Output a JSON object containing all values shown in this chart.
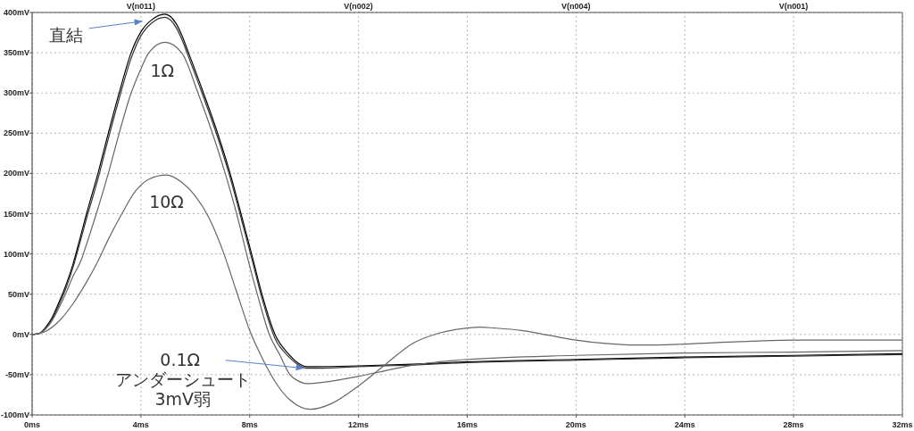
{
  "chart_data": {
    "type": "line",
    "xlim": [
      0,
      32
    ],
    "ylim": [
      -100,
      400
    ],
    "xticks": [
      {
        "value": 0,
        "label": "0ms"
      },
      {
        "value": 4,
        "label": "4ms"
      },
      {
        "value": 8,
        "label": "8ms"
      },
      {
        "value": 12,
        "label": "12ms"
      },
      {
        "value": 16,
        "label": "16ms"
      },
      {
        "value": 20,
        "label": "20ms"
      },
      {
        "value": 24,
        "label": "24ms"
      },
      {
        "value": 28,
        "label": "28ms"
      },
      {
        "value": 32,
        "label": "32ms"
      }
    ],
    "yticks": [
      {
        "value": -100,
        "label": "-100mV"
      },
      {
        "value": -50,
        "label": "-50mV"
      },
      {
        "value": 0,
        "label": "0mV"
      },
      {
        "value": 50,
        "label": "50mV"
      },
      {
        "value": 100,
        "label": "100mV"
      },
      {
        "value": 150,
        "label": "150mV"
      },
      {
        "value": 200,
        "label": "200mV"
      },
      {
        "value": 250,
        "label": "250mV"
      },
      {
        "value": 300,
        "label": "300mV"
      },
      {
        "value": 350,
        "label": "350mV"
      },
      {
        "value": 400,
        "label": "400mV"
      }
    ],
    "grid": true,
    "series": [
      {
        "name": "直結",
        "color": "#000000",
        "x": [
          0,
          0.25,
          0.5,
          0.75,
          1.0,
          1.25,
          1.5,
          1.75,
          2.0,
          2.42,
          2.8,
          3.2,
          3.64,
          4.0,
          4.4,
          4.88,
          5.3,
          5.5,
          5.75,
          6.3,
          6.82,
          7.28,
          7.68,
          8.07,
          8.45,
          8.93,
          9.45,
          9.8,
          10.1,
          10.5,
          12,
          14,
          16,
          20,
          24,
          28,
          32
        ],
        "values": [
          0,
          1,
          9,
          22,
          41,
          62,
          87,
          118,
          150,
          200,
          250,
          300,
          350,
          376,
          391,
          398,
          386,
          372,
          350,
          300,
          250,
          200,
          150,
          100,
          50,
          0,
          -25,
          -36,
          -40,
          -40,
          -39,
          -37,
          -34,
          -31,
          -28,
          -26,
          -24
        ]
      },
      {
        "color": "#333333",
        "x": [
          0,
          0.25,
          0.5,
          0.75,
          1.0,
          1.25,
          1.5,
          1.75,
          2.0,
          2.42,
          2.8,
          3.2,
          3.64,
          4.0,
          4.4,
          4.88,
          5.3,
          5.5,
          5.75,
          6.3,
          6.82,
          7.28,
          7.68,
          8.07,
          8.45,
          8.93,
          9.45,
          9.8,
          10.1,
          10.5,
          12,
          14,
          16,
          20,
          24,
          28,
          32
        ],
        "values": [
          0,
          1,
          8,
          20,
          38,
          58,
          83,
          113,
          144,
          193,
          243,
          293,
          343,
          371,
          387,
          394,
          381,
          367,
          345,
          295,
          245,
          195,
          145,
          95,
          45,
          -5,
          -28,
          -38,
          -42,
          -42,
          -40,
          -38,
          -35,
          -32,
          -29,
          -27,
          -25
        ]
      },
      {
        "name": "1Ω",
        "color": "#666666",
        "x": [
          0,
          0.25,
          0.5,
          0.75,
          1.0,
          1.25,
          1.5,
          1.8,
          2.0,
          2.36,
          2.8,
          3.2,
          3.64,
          4.0,
          4.29,
          4.88,
          5.5,
          6.1,
          6.63,
          7.1,
          7.52,
          7.96,
          8.28,
          8.72,
          9.1,
          9.48,
          9.8,
          10.08,
          11,
          12,
          13,
          14,
          15,
          16,
          20,
          24,
          28,
          32
        ],
        "values": [
          0,
          1,
          7,
          18,
          34,
          52,
          72,
          92,
          112,
          150,
          200,
          250,
          300,
          330,
          350,
          363,
          350,
          300,
          250,
          200,
          150,
          90,
          50,
          0,
          -25,
          -50,
          -58,
          -61,
          -58,
          -52,
          -45,
          -38,
          -34,
          -31,
          -26,
          -23,
          -22,
          -20
        ]
      },
      {
        "name": "10Ω",
        "color": "#666666",
        "x": [
          0,
          0.5,
          1.0,
          1.5,
          2.0,
          2.36,
          2.8,
          3.3,
          3.8,
          4.3,
          4.94,
          5.5,
          6.0,
          6.5,
          7.0,
          7.5,
          8.0,
          8.5,
          9.0,
          9.5,
          10.25,
          11,
          12,
          13,
          14,
          15,
          16,
          16.5,
          17,
          18,
          19,
          20,
          21,
          22,
          23,
          24,
          26,
          28,
          30,
          32
        ],
        "values": [
          0,
          4,
          17,
          38,
          65,
          87,
          118,
          150,
          178,
          193,
          198,
          189,
          172,
          145,
          105,
          55,
          5,
          -32,
          -62,
          -82,
          -93,
          -86,
          -64,
          -37,
          -11,
          2,
          8,
          9,
          8,
          5,
          -1,
          -7,
          -11,
          -13,
          -13,
          -12,
          -9,
          -7,
          -7,
          -7
        ]
      }
    ],
    "annotations": [
      "V(n011)",
      "V(n002)",
      "V(n004)",
      "V(n001)",
      {
        "text": "0.1Ω アンダーシュート 3mV弱",
        "x": 10,
        "y": -42
      }
    ]
  }
}
